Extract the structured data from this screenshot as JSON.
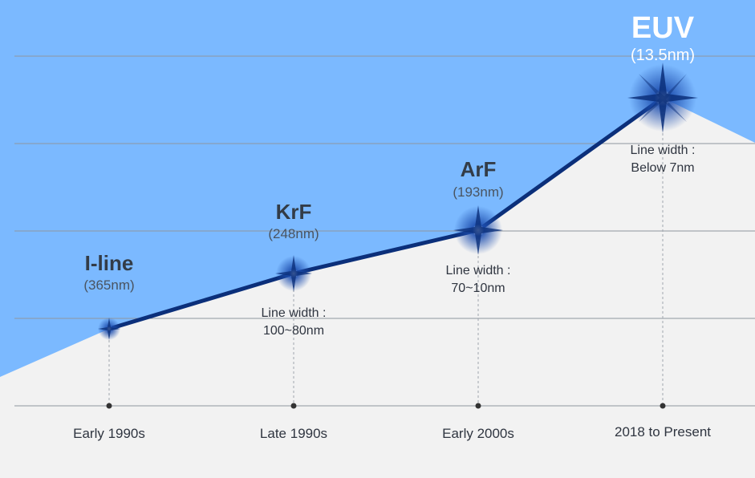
{
  "colors": {
    "sky": "#7bb9ff",
    "ground": "#f2f2f2",
    "line": "#0b2f7a",
    "grid": "#8f969f",
    "dot": "#333333"
  },
  "milestones": [
    {
      "tech": "I-line",
      "wavelength": "(365nm)",
      "era": "Early 1990s",
      "line_width_label": "",
      "line_width_value": ""
    },
    {
      "tech": "KrF",
      "wavelength": "(248nm)",
      "era": "Late 1990s",
      "line_width_label": "Line width :",
      "line_width_value": "100~80nm"
    },
    {
      "tech": "ArF",
      "wavelength": "(193nm)",
      "era": "Early 2000s",
      "line_width_label": "Line width :",
      "line_width_value": "70~10nm"
    },
    {
      "tech": "EUV",
      "wavelength": "(13.5nm)",
      "era": "2018 to Present",
      "line_width_label": "Line width :",
      "line_width_value": "Below 7nm"
    }
  ]
}
